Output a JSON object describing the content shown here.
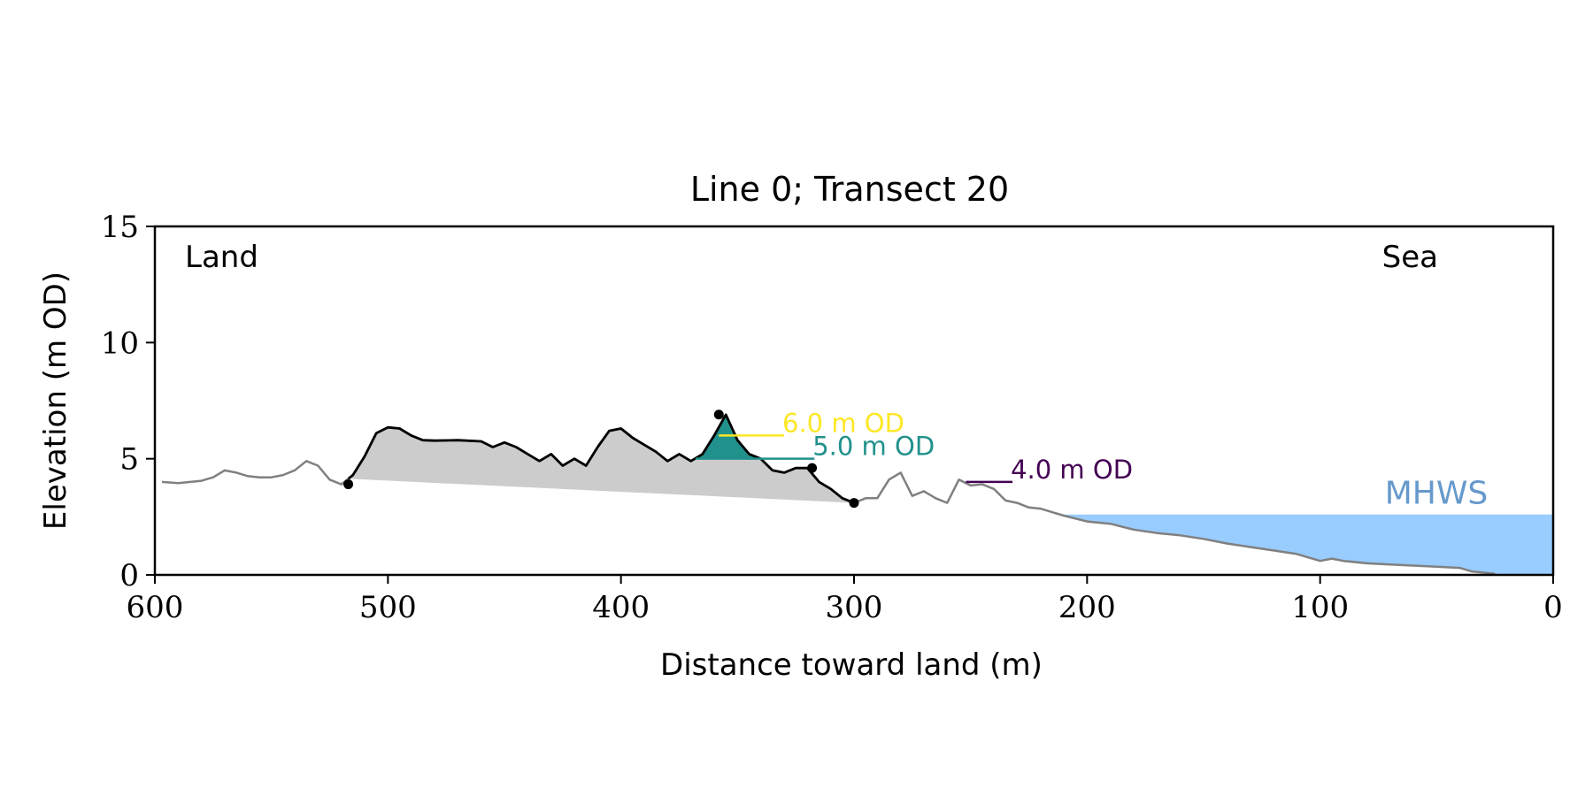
{
  "chart_data": {
    "type": "area",
    "title": "Line 0; Transect 20",
    "xlabel": "Distance toward land (m)",
    "ylabel": "Elevation (m OD)",
    "xlim": [
      600,
      0
    ],
    "ylim": [
      0,
      15
    ],
    "x_ticks": [
      "600",
      "500",
      "400",
      "300",
      "200",
      "100",
      "0"
    ],
    "y_ticks": [
      "0",
      "5",
      "10",
      "15"
    ],
    "land_label": "Land",
    "sea_label": "Sea",
    "grid": false,
    "colors": {
      "profile": "#808080",
      "dune": "#000000",
      "dune_fill": "#cccccc",
      "level_6": "#fde725",
      "level_5": "#21918c",
      "level_4": "#440154",
      "sea": "#99ccff",
      "mhws_text": "#6699cc"
    },
    "mhws": {
      "label": "MHWS",
      "elevation": 2.6
    },
    "profile": {
      "x": [
        597,
        590,
        580,
        575,
        570,
        565,
        560,
        555,
        550,
        545,
        540,
        535,
        530,
        525,
        520,
        515,
        510,
        505,
        500,
        495,
        490,
        485,
        480,
        470,
        460,
        455,
        450,
        445,
        440,
        435,
        430,
        425,
        420,
        415,
        410,
        405,
        400,
        395,
        390,
        385,
        380,
        375,
        370,
        365,
        360,
        355,
        350,
        345,
        340,
        335,
        330,
        325,
        320,
        315,
        310,
        305,
        300,
        295,
        290,
        285,
        280,
        275,
        270,
        265,
        260,
        255,
        250,
        245,
        240,
        235,
        230,
        225,
        220,
        215,
        210,
        200,
        190,
        180,
        170,
        160,
        150,
        140,
        130,
        120,
        110,
        100,
        95,
        90,
        80,
        70,
        60,
        50,
        40,
        35,
        30,
        25
      ],
      "y": [
        4.0,
        3.95,
        4.05,
        4.2,
        4.5,
        4.4,
        4.25,
        4.2,
        4.2,
        4.3,
        4.5,
        4.9,
        4.7,
        4.1,
        3.9,
        4.3,
        5.1,
        6.1,
        6.35,
        6.3,
        6.0,
        5.8,
        5.78,
        5.8,
        5.75,
        5.5,
        5.7,
        5.5,
        5.2,
        4.9,
        5.2,
        4.7,
        5.0,
        4.7,
        5.5,
        6.2,
        6.3,
        5.9,
        5.6,
        5.3,
        4.9,
        5.2,
        4.9,
        5.2,
        6.0,
        6.9,
        5.8,
        5.2,
        5.0,
        4.5,
        4.4,
        4.6,
        4.6,
        4.0,
        3.7,
        3.3,
        3.1,
        3.3,
        3.3,
        4.1,
        4.4,
        3.4,
        3.6,
        3.3,
        3.1,
        4.1,
        3.85,
        3.9,
        3.7,
        3.2,
        3.1,
        2.9,
        2.85,
        2.7,
        2.55,
        2.3,
        2.2,
        1.95,
        1.8,
        1.7,
        1.55,
        1.35,
        1.2,
        1.05,
        0.9,
        0.6,
        0.7,
        0.6,
        0.5,
        0.45,
        0.4,
        0.35,
        0.3,
        0.15,
        0.1,
        0.05
      ]
    },
    "dune_segment": {
      "x_start": 517,
      "x_end": 300
    },
    "markers": [
      {
        "x": 517,
        "y": 3.9
      },
      {
        "x": 358,
        "y": 6.9
      },
      {
        "x": 318,
        "y": 4.6
      },
      {
        "x": 300,
        "y": 3.1
      }
    ],
    "levels": [
      {
        "label": "6.0 m OD",
        "elevation": 6.0,
        "x_from": 358,
        "x_to": 330
      },
      {
        "label": "5.0 m OD",
        "elevation": 5.0,
        "x_from": 368,
        "x_to": 317
      },
      {
        "label": "4.0 m OD",
        "elevation": 4.0,
        "x_from": 252,
        "x_to": 232
      }
    ]
  }
}
